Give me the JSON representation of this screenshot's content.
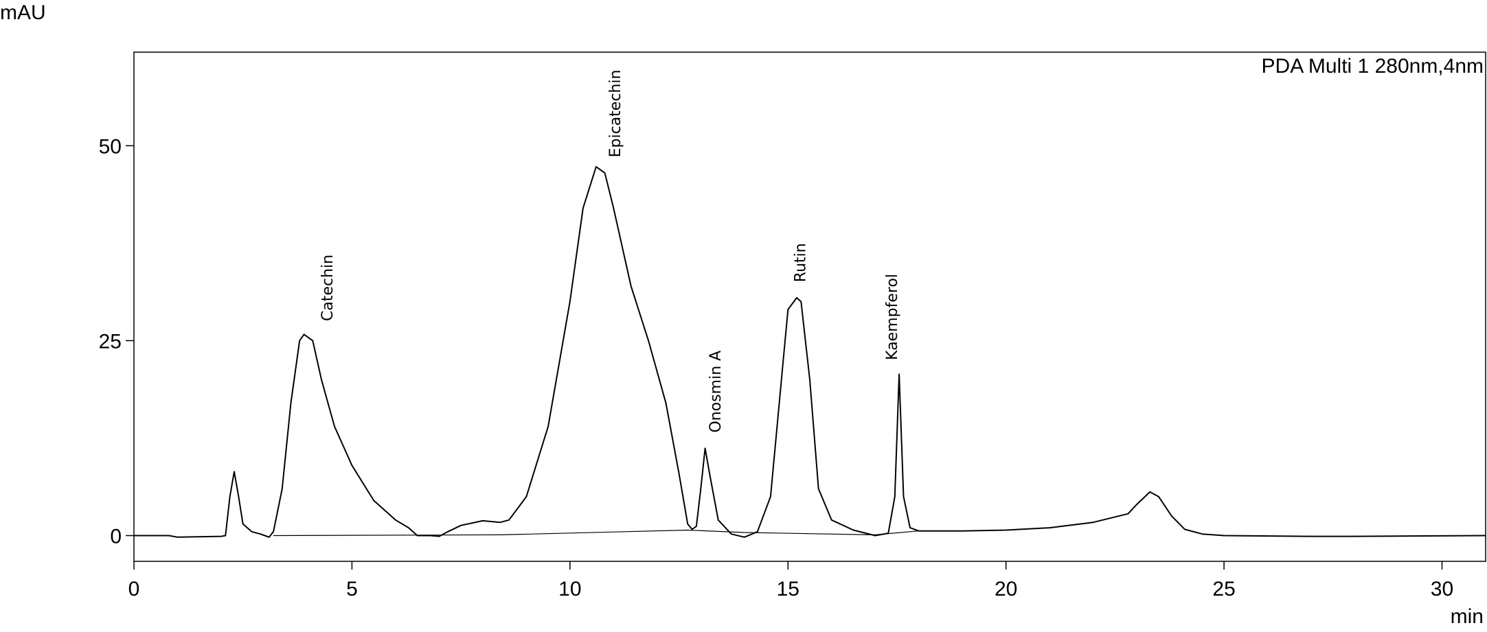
{
  "chart_data": {
    "type": "line",
    "title": "PDA Multi 1 280nm,4nm",
    "x_label": "min",
    "y_label": "mAU",
    "xlim": [
      0,
      31
    ],
    "xticks": [
      0,
      5,
      10,
      15,
      20,
      25,
      30
    ],
    "ylim": [
      -3.3,
      62
    ],
    "yticks": [
      0,
      25,
      50
    ],
    "series": [
      {
        "color": "#000000",
        "x": [
          0,
          0.8,
          1.0,
          2.0,
          2.1,
          2.2,
          2.3,
          2.4,
          2.5,
          2.7,
          2.9,
          3.0,
          3.1,
          3.2,
          3.4,
          3.6,
          3.8,
          3.9,
          4.1,
          4.3,
          4.6,
          5.0,
          5.5,
          6.0,
          6.3,
          6.5,
          6.8,
          7.0,
          7.2,
          7.5,
          8.0,
          8.4,
          8.6,
          9.0,
          9.5,
          10.0,
          10.3,
          10.6,
          10.8,
          11.0,
          11.4,
          11.8,
          12.2,
          12.5,
          12.7,
          12.8,
          12.9,
          13.0,
          13.1,
          13.2,
          13.4,
          13.7,
          14.0,
          14.3,
          14.6,
          14.9,
          15.0,
          15.2,
          15.3,
          15.5,
          15.7,
          16.0,
          16.5,
          17.0,
          17.3,
          17.45,
          17.55,
          17.65,
          17.8,
          18.0,
          19,
          20,
          21,
          22,
          22.8,
          23,
          23.3,
          23.5,
          23.8,
          24.1,
          24.5,
          25,
          27,
          28,
          31
        ],
        "values": [
          0,
          0,
          -0.2,
          -0.1,
          0,
          5,
          8.2,
          5,
          1.5,
          0.5,
          0.2,
          0,
          -0.2,
          0.5,
          6,
          17,
          25,
          25.8,
          25,
          20,
          14,
          9,
          4.5,
          2,
          1,
          0,
          0,
          -0.1,
          0.5,
          1.3,
          1.9,
          1.7,
          2,
          5,
          14,
          30,
          42,
          47.3,
          46.5,
          42,
          32,
          25,
          17,
          8,
          1.5,
          0.8,
          1.2,
          6,
          11.2,
          8,
          2,
          0.2,
          -0.2,
          0.5,
          5,
          23,
          29,
          30.5,
          30,
          20,
          6,
          2,
          0.7,
          0,
          0.3,
          5,
          20.7,
          5,
          1,
          0.6,
          0.6,
          0.7,
          1,
          1.7,
          2.8,
          4,
          5.6,
          5,
          2.5,
          0.8,
          0.2,
          0,
          -0.1,
          -0.1,
          0
        ]
      },
      {
        "color": "#000000",
        "x": [
          3.2,
          8.4,
          12.7,
          14.0,
          17.0,
          18.0
        ],
        "values": [
          0,
          0.1,
          0.7,
          0.4,
          0.1,
          0.6
        ]
      }
    ],
    "annotations": [
      "Catechin",
      "Epicatechin",
      "Onosmin A",
      "Rutin",
      "Kaempferol"
    ]
  }
}
